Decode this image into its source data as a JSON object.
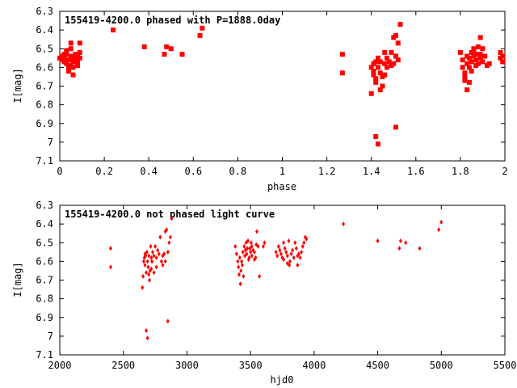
{
  "chart_data": [
    {
      "type": "scatter",
      "title": "155419-4200.0 phased with P=1888.0day",
      "xlabel": "phase",
      "ylabel": "I[mag]",
      "xlim": [
        0,
        2
      ],
      "ylim": [
        6.3,
        7.1
      ],
      "y_inverted": true,
      "xticks": [
        0,
        0.2,
        0.4,
        0.6,
        0.8,
        1,
        1.2,
        1.4,
        1.6,
        1.8,
        2
      ],
      "xtick_labels": [
        "0",
        "0.2",
        "0.4",
        "0.6",
        "0.8",
        "1",
        "1.2",
        "1.4",
        "1.6",
        "1.8",
        "2"
      ],
      "yticks": [
        6.3,
        6.4,
        6.5,
        6.6,
        6.7,
        6.8,
        6.9,
        7,
        7.1
      ],
      "ytick_labels": [
        "6.3",
        "6.4",
        "6.5",
        "6.6",
        "6.7",
        "6.8",
        "6.9",
        "7",
        "7.1"
      ],
      "grid": false,
      "marker_color": "#ff0000",
      "points": [
        [
          0.0,
          6.55
        ],
        [
          0.01,
          6.56
        ],
        [
          0.01,
          6.54
        ],
        [
          0.02,
          6.57
        ],
        [
          0.02,
          6.55
        ],
        [
          0.03,
          6.53
        ],
        [
          0.03,
          6.58
        ],
        [
          0.04,
          6.6
        ],
        [
          0.04,
          6.56
        ],
        [
          0.05,
          6.47
        ],
        [
          0.05,
          6.5
        ],
        [
          0.05,
          6.54
        ],
        [
          0.06,
          6.57
        ],
        [
          0.06,
          6.6
        ],
        [
          0.06,
          6.55
        ],
        [
          0.07,
          6.53
        ],
        [
          0.07,
          6.56
        ],
        [
          0.08,
          6.59
        ],
        [
          0.08,
          6.57
        ],
        [
          0.09,
          6.55
        ],
        [
          0.09,
          6.52
        ],
        [
          0.04,
          6.62
        ],
        [
          0.05,
          6.59
        ],
        [
          0.06,
          6.64
        ],
        [
          0.07,
          6.57
        ],
        [
          0.08,
          6.54
        ],
        [
          0.09,
          6.47
        ],
        [
          0.03,
          6.51
        ],
        [
          0.02,
          6.53
        ],
        [
          0.24,
          6.4
        ],
        [
          0.38,
          6.49
        ],
        [
          0.47,
          6.53
        ],
        [
          0.48,
          6.49
        ],
        [
          0.5,
          6.5
        ],
        [
          0.55,
          6.53
        ],
        [
          0.63,
          6.43
        ],
        [
          0.64,
          6.39
        ],
        [
          1.27,
          6.53
        ],
        [
          1.27,
          6.63
        ],
        [
          1.4,
          6.74
        ],
        [
          1.4,
          6.6
        ],
        [
          1.41,
          6.58
        ],
        [
          1.41,
          6.62
        ],
        [
          1.42,
          6.57
        ],
        [
          1.42,
          6.66
        ],
        [
          1.42,
          6.68
        ],
        [
          1.43,
          6.55
        ],
        [
          1.43,
          6.6
        ],
        [
          1.44,
          6.63
        ],
        [
          1.44,
          6.57
        ],
        [
          1.45,
          6.7
        ],
        [
          1.45,
          6.65
        ],
        [
          1.46,
          6.52
        ],
        [
          1.46,
          6.58
        ],
        [
          1.47,
          6.6
        ],
        [
          1.47,
          6.55
        ],
        [
          1.48,
          6.57
        ],
        [
          1.49,
          6.52
        ],
        [
          1.5,
          6.44
        ],
        [
          1.5,
          6.58
        ],
        [
          1.51,
          6.54
        ],
        [
          1.52,
          6.56
        ],
        [
          1.52,
          6.47
        ],
        [
          1.53,
          6.37
        ],
        [
          1.42,
          6.97
        ],
        [
          1.43,
          7.01
        ],
        [
          1.51,
          6.92
        ],
        [
          1.44,
          6.72
        ],
        [
          1.41,
          6.64
        ],
        [
          1.46,
          6.64
        ],
        [
          1.49,
          6.59
        ],
        [
          1.51,
          6.43
        ],
        [
          1.8,
          6.52
        ],
        [
          1.81,
          6.56
        ],
        [
          1.81,
          6.6
        ],
        [
          1.82,
          6.63
        ],
        [
          1.82,
          6.67
        ],
        [
          1.83,
          6.58
        ],
        [
          1.83,
          6.72
        ],
        [
          1.84,
          6.6
        ],
        [
          1.84,
          6.55
        ],
        [
          1.85,
          6.52
        ],
        [
          1.85,
          6.57
        ],
        [
          1.86,
          6.54
        ],
        [
          1.86,
          6.5
        ],
        [
          1.87,
          6.56
        ],
        [
          1.87,
          6.53
        ],
        [
          1.88,
          6.49
        ],
        [
          1.88,
          6.58
        ],
        [
          1.89,
          6.53
        ],
        [
          1.89,
          6.55
        ],
        [
          1.89,
          6.44
        ],
        [
          1.9,
          6.5
        ],
        [
          1.9,
          6.57
        ],
        [
          1.91,
          6.54
        ],
        [
          1.92,
          6.59
        ],
        [
          1.93,
          6.58
        ],
        [
          1.84,
          6.68
        ],
        [
          1.82,
          6.65
        ],
        [
          1.85,
          6.62
        ],
        [
          1.87,
          6.59
        ],
        [
          1.98,
          6.55
        ],
        [
          1.99,
          6.57
        ],
        [
          1.98,
          6.52
        ],
        [
          1.99,
          6.54
        ],
        [
          1.83,
          6.54
        ],
        [
          1.86,
          6.51
        ]
      ]
    },
    {
      "type": "scatter",
      "title": "155419-4200.0 not phased light curve",
      "xlabel": "hjd0",
      "ylabel": "I[mag]",
      "xlim": [
        2000,
        5500
      ],
      "ylim": [
        6.3,
        7.1
      ],
      "y_inverted": true,
      "xticks": [
        2000,
        2500,
        3000,
        3500,
        4000,
        4500,
        5000,
        5500
      ],
      "xtick_labels": [
        "2000",
        "2500",
        "3000",
        "3500",
        "4000",
        "4500",
        "5000",
        "5500"
      ],
      "yticks": [
        6.3,
        6.4,
        6.5,
        6.6,
        6.7,
        6.8,
        6.9,
        7,
        7.1
      ],
      "ytick_labels": [
        "6.3",
        "6.4",
        "6.5",
        "6.6",
        "6.7",
        "6.8",
        "6.9",
        "7",
        "7.1"
      ],
      "grid": false,
      "marker_color": "#ff0000",
      "points": [
        [
          2400,
          6.53
        ],
        [
          2400,
          6.63
        ],
        [
          2650,
          6.74
        ],
        [
          2660,
          6.6
        ],
        [
          2665,
          6.58
        ],
        [
          2670,
          6.62
        ],
        [
          2675,
          6.57
        ],
        [
          2680,
          6.66
        ],
        [
          2685,
          6.55
        ],
        [
          2690,
          6.6
        ],
        [
          2695,
          6.63
        ],
        [
          2700,
          6.57
        ],
        [
          2705,
          6.7
        ],
        [
          2710,
          6.65
        ],
        [
          2715,
          6.52
        ],
        [
          2720,
          6.58
        ],
        [
          2725,
          6.6
        ],
        [
          2730,
          6.55
        ],
        [
          2740,
          6.57
        ],
        [
          2750,
          6.52
        ],
        [
          2760,
          6.58
        ],
        [
          2770,
          6.54
        ],
        [
          2780,
          6.56
        ],
        [
          2790,
          6.47
        ],
        [
          2800,
          6.6
        ],
        [
          2810,
          6.62
        ],
        [
          2820,
          6.56
        ],
        [
          2830,
          6.44
        ],
        [
          2840,
          6.43
        ],
        [
          2850,
          6.55
        ],
        [
          2860,
          6.5
        ],
        [
          2870,
          6.47
        ],
        [
          2880,
          6.37
        ],
        [
          2680,
          6.97
        ],
        [
          2690,
          7.01
        ],
        [
          2850,
          6.92
        ],
        [
          2700,
          6.67
        ],
        [
          2720,
          6.64
        ],
        [
          2740,
          6.66
        ],
        [
          2655,
          6.68
        ],
        [
          2670,
          6.56
        ],
        [
          2760,
          6.63
        ],
        [
          2810,
          6.57
        ],
        [
          2830,
          6.6
        ],
        [
          3380,
          6.52
        ],
        [
          3390,
          6.56
        ],
        [
          3400,
          6.6
        ],
        [
          3405,
          6.63
        ],
        [
          3410,
          6.67
        ],
        [
          3415,
          6.58
        ],
        [
          3420,
          6.72
        ],
        [
          3430,
          6.6
        ],
        [
          3440,
          6.55
        ],
        [
          3450,
          6.52
        ],
        [
          3455,
          6.57
        ],
        [
          3460,
          6.54
        ],
        [
          3465,
          6.5
        ],
        [
          3470,
          6.56
        ],
        [
          3475,
          6.53
        ],
        [
          3480,
          6.49
        ],
        [
          3490,
          6.58
        ],
        [
          3495,
          6.53
        ],
        [
          3500,
          6.55
        ],
        [
          3505,
          6.5
        ],
        [
          3510,
          6.57
        ],
        [
          3520,
          6.54
        ],
        [
          3530,
          6.59
        ],
        [
          3540,
          6.58
        ],
        [
          3550,
          6.44
        ],
        [
          3560,
          6.52
        ],
        [
          3570,
          6.68
        ],
        [
          3445,
          6.68
        ],
        [
          3425,
          6.65
        ],
        [
          3435,
          6.62
        ],
        [
          3485,
          6.59
        ],
        [
          3600,
          6.52
        ],
        [
          3610,
          6.5
        ],
        [
          3510,
          6.52
        ],
        [
          3530,
          6.55
        ],
        [
          3545,
          6.51
        ],
        [
          3700,
          6.55
        ],
        [
          3710,
          6.57
        ],
        [
          3720,
          6.52
        ],
        [
          3730,
          6.54
        ],
        [
          3740,
          6.56
        ],
        [
          3750,
          6.58
        ],
        [
          3760,
          6.5
        ],
        [
          3770,
          6.53
        ],
        [
          3780,
          6.55
        ],
        [
          3790,
          6.57
        ],
        [
          3800,
          6.49
        ],
        [
          3805,
          6.62
        ],
        [
          3810,
          6.6
        ],
        [
          3820,
          6.56
        ],
        [
          3830,
          6.54
        ],
        [
          3840,
          6.58
        ],
        [
          3850,
          6.5
        ],
        [
          3860,
          6.53
        ],
        [
          3870,
          6.62
        ],
        [
          3880,
          6.56
        ],
        [
          3890,
          6.58
        ],
        [
          3900,
          6.55
        ],
        [
          3910,
          6.52
        ],
        [
          3920,
          6.5
        ],
        [
          3930,
          6.47
        ],
        [
          3940,
          6.48
        ],
        [
          3760,
          6.59
        ],
        [
          3790,
          6.61
        ],
        [
          3870,
          6.57
        ],
        [
          4230,
          6.4
        ],
        [
          4500,
          6.49
        ],
        [
          4670,
          6.53
        ],
        [
          4680,
          6.49
        ],
        [
          4720,
          6.5
        ],
        [
          4830,
          6.53
        ],
        [
          4980,
          6.43
        ],
        [
          5000,
          6.39
        ]
      ]
    }
  ]
}
